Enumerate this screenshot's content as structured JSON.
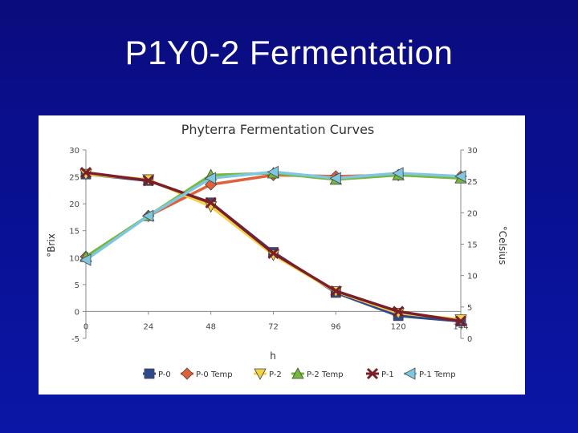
{
  "slide": {
    "title": "P1Y0-2 Fermentation"
  },
  "chart_data": {
    "type": "line",
    "title": "Phyterra Fermentation Curves",
    "xlabel": "h",
    "ylabel_left": "°Brix",
    "ylabel_right": "°Celsius",
    "x": [
      0,
      24,
      48,
      72,
      96,
      120,
      144
    ],
    "xlim": [
      0,
      144
    ],
    "ylim_left": [
      -5,
      30
    ],
    "ylim_right": [
      0,
      30
    ],
    "yticks_left": [
      -5,
      0,
      5,
      10,
      15,
      20,
      25,
      30
    ],
    "yticks_right": [
      0,
      5,
      10,
      15,
      20,
      25,
      30
    ],
    "grid": false,
    "legend_position": "bottom",
    "series": [
      {
        "name": "P-0",
        "axis": "left",
        "color": "#2e4a8a",
        "marker": "square",
        "values": [
          25.5,
          24.3,
          20.2,
          11.0,
          3.5,
          -0.8,
          -1.8
        ]
      },
      {
        "name": "P-0 Temp",
        "axis": "right",
        "color": "#e0603a",
        "marker": "diamond",
        "values": [
          13.0,
          19.5,
          24.5,
          26.0,
          25.8,
          26.0,
          25.8
        ]
      },
      {
        "name": "P-2",
        "axis": "left",
        "color": "#f2d24a",
        "marker": "triangle-down",
        "values": [
          25.5,
          24.5,
          19.5,
          10.5,
          3.7,
          -0.3,
          -1.5
        ]
      },
      {
        "name": "P-2 Temp",
        "axis": "right",
        "color": "#76b83a",
        "marker": "triangle-up",
        "values": [
          13.0,
          19.5,
          26.0,
          26.3,
          25.3,
          26.0,
          25.5
        ]
      },
      {
        "name": "P-1",
        "axis": "left",
        "color": "#7a1f2a",
        "marker": "x",
        "values": [
          25.8,
          24.3,
          20.2,
          10.8,
          3.8,
          0.0,
          -1.8
        ]
      },
      {
        "name": "P-1 Temp",
        "axis": "right",
        "color": "#7fc6e0",
        "marker": "triangle-left",
        "values": [
          12.5,
          19.5,
          25.5,
          26.5,
          25.5,
          26.3,
          25.8
        ]
      }
    ]
  }
}
